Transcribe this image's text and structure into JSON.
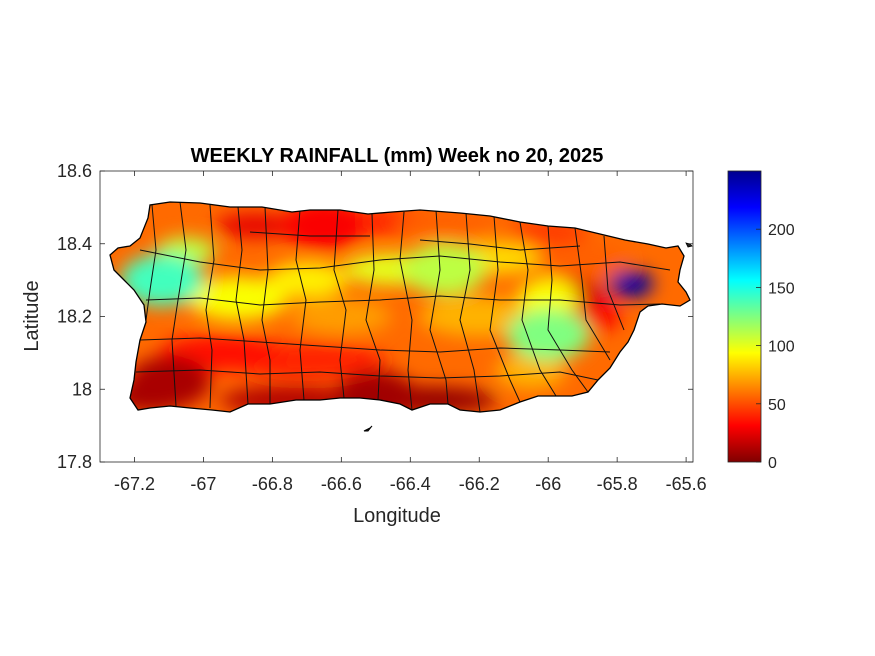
{
  "chart_data": {
    "type": "heatmap",
    "title": "WEEKLY RAINFALL (mm) Week no 20, 2025",
    "xlabel": "Longitude",
    "ylabel": "Latitude",
    "xlim": [
      -67.3,
      -65.58
    ],
    "ylim": [
      17.8,
      18.6
    ],
    "x_ticks": [
      -67.2,
      -67,
      -66.8,
      -66.6,
      -66.4,
      -66.2,
      -66,
      -65.8,
      -65.6
    ],
    "x_tick_labels": [
      "-67.2",
      "-67",
      "-66.8",
      "-66.6",
      "-66.4",
      "-66.2",
      "-66",
      "-65.8",
      "-65.6"
    ],
    "y_ticks": [
      17.8,
      18,
      18.2,
      18.4,
      18.6
    ],
    "y_tick_labels": [
      "17.8",
      "18",
      "18.2",
      "18.4",
      "18.6"
    ],
    "colorbar": {
      "colormap": "jet",
      "range": [
        0,
        250
      ],
      "ticks": [
        0,
        50,
        100,
        150,
        200
      ],
      "tick_labels": [
        "0",
        "50",
        "100",
        "150",
        "200"
      ],
      "reversed": true
    },
    "region": "Puerto Rico",
    "features": [
      {
        "name": "peak-rainfall",
        "lon": -65.76,
        "lat": 18.29,
        "value_mm": 245
      },
      {
        "name": "northwest-wet-zone",
        "lon": -67.12,
        "lat": 18.3,
        "value_mm": 140
      },
      {
        "name": "east-central-wet-zone",
        "lon": -66.0,
        "lat": 18.15,
        "value_mm": 125
      },
      {
        "name": "north-central-wet-zone",
        "lon": -66.3,
        "lat": 18.33,
        "value_mm": 110
      },
      {
        "name": "southwest-dry-zone",
        "lon": -67.1,
        "lat": 18.02,
        "value_mm": 10
      },
      {
        "name": "south-coast-dry-zone",
        "lon": -66.5,
        "lat": 17.98,
        "value_mm": 8
      },
      {
        "name": "north-coast-dry-zone",
        "lon": -66.65,
        "lat": 18.45,
        "value_mm": 30
      }
    ],
    "grid": false
  }
}
